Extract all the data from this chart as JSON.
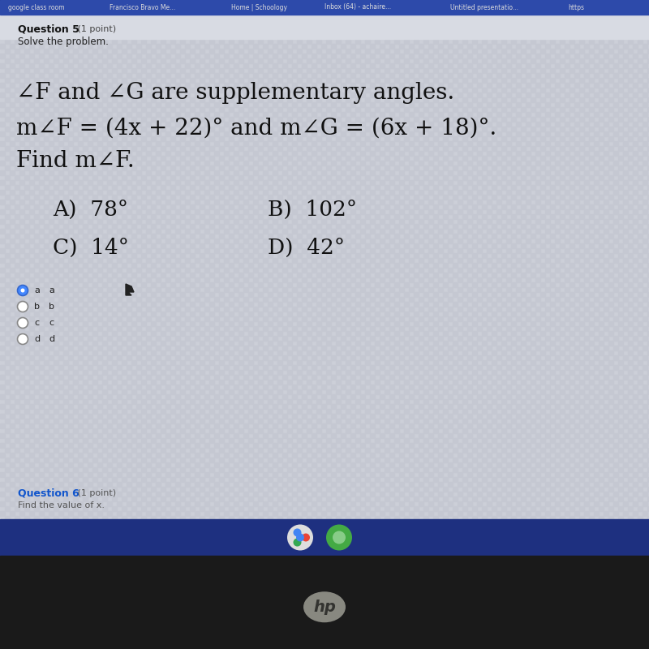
{
  "bg_browser_bar": "#2d4aaa",
  "bg_content": "#ccd0db",
  "bg_content2": "#c4c8d4",
  "bg_taskbar": "#1e3080",
  "bg_dark": "#1a1a1a",
  "browser_text_color": "#dddddd",
  "question_label": "Question 5",
  "question_point": " (1 point)",
  "subheader": "Solve the problem.",
  "main_line1": "∠F and ∠G are supplementary angles.",
  "main_line2": "m∠F = (4x + 22)° and m∠G = (6x + 18)°.",
  "main_line3": "Find m∠F.",
  "choice_A": "A)  78°",
  "choice_B": "B)  102°",
  "choice_C": "C)  14°",
  "choice_D": "D)  42°",
  "radio_options": [
    "a",
    "b",
    "c",
    "d"
  ],
  "selected_radio": 0,
  "q6_label": "Question 6",
  "q6_point": " (1 point)",
  "q6_sub": "Find the value of x.",
  "browser_tabs": [
    "google class room",
    "Francisco Bravo Me...",
    "Home | Schoology",
    "Inbox (64) - achaire...",
    "Untitled presentatio...",
    "https"
  ],
  "browser_tab_x": [
    10,
    135,
    285,
    400,
    555,
    700
  ],
  "hp_logo_color": "#aaaaaa",
  "taskbar_icon1_color": "#dddddd",
  "taskbar_icon2_color": "#55aa55"
}
